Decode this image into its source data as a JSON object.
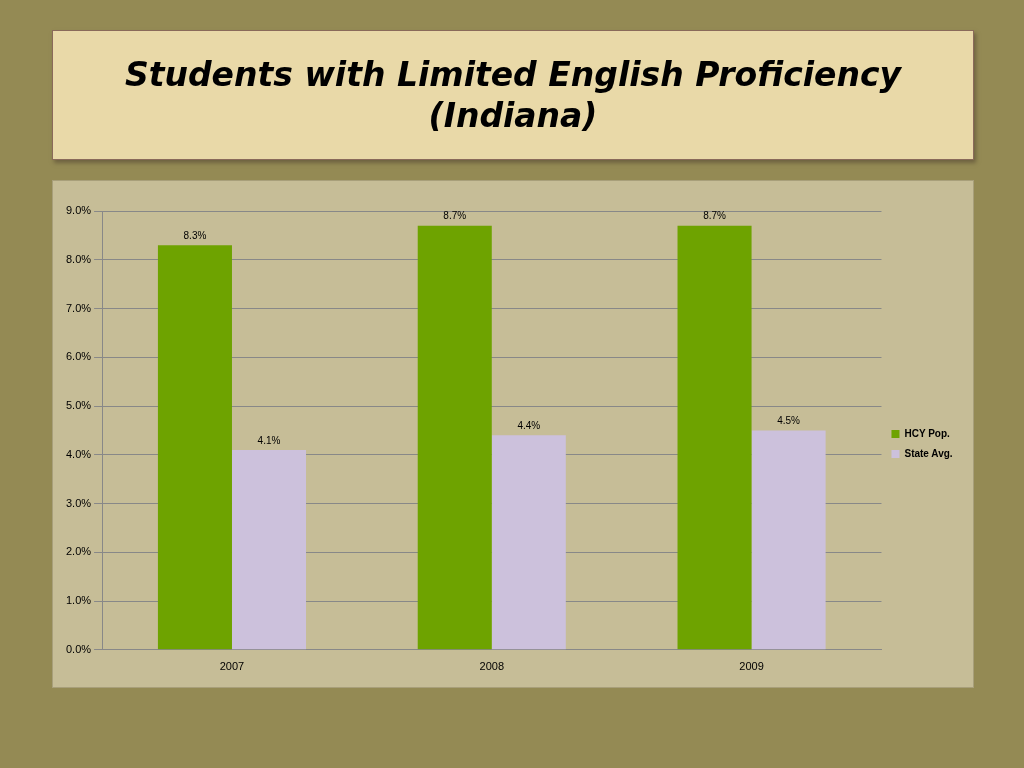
{
  "chart_data": {
    "type": "bar",
    "title": "Students with Limited English Proficiency (Indiana)",
    "categories": [
      "2007",
      "2008",
      "2009"
    ],
    "series": [
      {
        "name": "HCY Pop.",
        "color": "#6ea300",
        "values": [
          8.3,
          8.7,
          8.7
        ],
        "value_labels": [
          "8.3%",
          "8.7%",
          "8.7%"
        ]
      },
      {
        "name": "State Avg.",
        "color": "#ccc1dc",
        "values": [
          4.1,
          4.4,
          4.5
        ],
        "value_labels": [
          "4.1%",
          "4.4%",
          "4.5%"
        ]
      }
    ],
    "ylim": [
      0,
      9
    ],
    "yticks": [
      {
        "value": 0,
        "label": "0.0%"
      },
      {
        "value": 1,
        "label": "1.0%"
      },
      {
        "value": 2,
        "label": "2.0%"
      },
      {
        "value": 3,
        "label": "3.0%"
      },
      {
        "value": 4,
        "label": "4.0%"
      },
      {
        "value": 5,
        "label": "5.0%"
      },
      {
        "value": 6,
        "label": "6.0%"
      },
      {
        "value": 7,
        "label": "7.0%"
      },
      {
        "value": 8,
        "label": "8.0%"
      },
      {
        "value": 9,
        "label": "9.0%"
      }
    ],
    "grid": "y",
    "legend": "right"
  }
}
